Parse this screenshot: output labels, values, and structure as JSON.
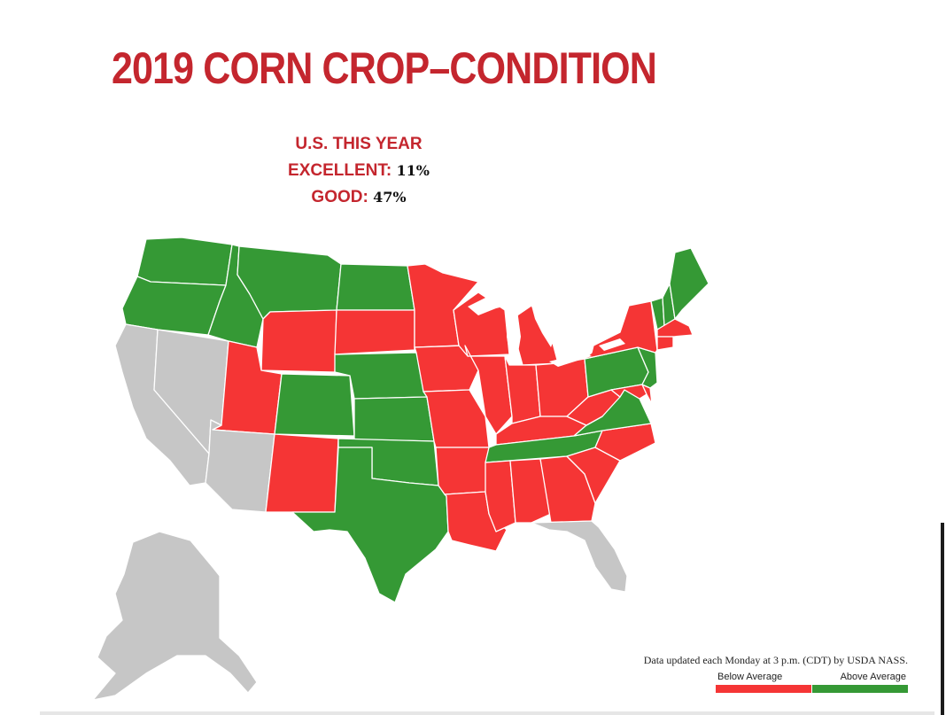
{
  "title": "2019 CORN CROP–CONDITION",
  "summary": {
    "heading": "U.S. THIS YEAR",
    "excellent_label": "EXCELLENT:",
    "excellent_value": "11%",
    "good_label": "GOOD:",
    "good_value": "47%"
  },
  "footer_note": "Data updated each Monday at 3 p.m. (CDT) by USDA NASS.",
  "legend": {
    "below_label": "Below Average",
    "above_label": "Above Average"
  },
  "colors": {
    "above_average": "#359935",
    "below_average": "#f53535",
    "no_data": "#c6c6c6",
    "title": "#c4262e"
  },
  "states": {
    "WA": "above",
    "OR": "above",
    "ID": "above",
    "MT": "above",
    "ND": "above",
    "WY": "below",
    "SD": "below",
    "UT": "below",
    "CO": "above",
    "NE": "above",
    "KS": "above",
    "NM": "below",
    "OK": "above",
    "TX": "above",
    "MN": "below",
    "IA": "below",
    "MO": "below",
    "AR": "below",
    "LA": "below",
    "WI": "below",
    "IL": "below",
    "MI": "below",
    "IN": "below",
    "OH": "below",
    "KY": "below",
    "TN": "above",
    "MS": "below",
    "AL": "below",
    "GA": "below",
    "SC": "below",
    "NC": "below",
    "VA": "above",
    "WV": "below",
    "PA": "above",
    "NY": "below",
    "MD": "below",
    "DE": "below",
    "NJ": "above",
    "VT": "above",
    "NH": "above",
    "ME": "above",
    "MA": "below",
    "CT": "below",
    "CA": "nodata",
    "NV": "nodata",
    "AZ": "nodata",
    "FL": "nodata",
    "AK": "nodata"
  }
}
